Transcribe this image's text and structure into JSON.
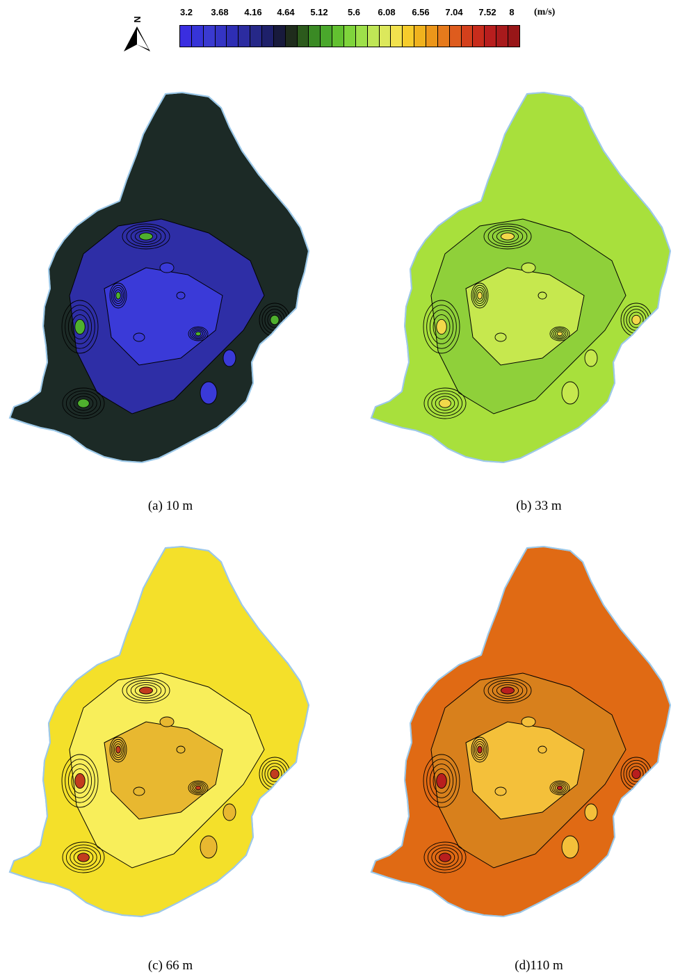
{
  "legend": {
    "ticks": [
      "3.2",
      "3.68",
      "4.16",
      "4.64",
      "5.12",
      "5.6",
      "6.08",
      "6.56",
      "7.04",
      "7.52",
      "8"
    ],
    "unit": "(m/s)",
    "north_label": "N",
    "colors": [
      "#3a2ee0",
      "#3634d8",
      "#3a3ad0",
      "#3434c4",
      "#2e2eb4",
      "#2c2ca0",
      "#262888",
      "#1e206a",
      "#181a3c",
      "#1f2c1c",
      "#2c5a1c",
      "#3a8a24",
      "#4aa82c",
      "#62c030",
      "#7fd43c",
      "#9ee04a",
      "#bfe656",
      "#dce85c",
      "#f2e24e",
      "#f6cc2c",
      "#f0b21e",
      "#ec961a",
      "#e67a1c",
      "#de5c1e",
      "#d4401c",
      "#c82c1c",
      "#b81e1e",
      "#a81a1c",
      "#981618"
    ]
  },
  "panels": [
    {
      "caption": "(a) 10 m",
      "base_color": "#1c2a26",
      "region_color": "#2e2ea6",
      "light_color": "#3a3ad8",
      "accent_color": "#4fb02e"
    },
    {
      "caption": "(b) 33 m",
      "base_color": "#a8e03c",
      "region_color": "#8fd03a",
      "light_color": "#c6e84e",
      "accent_color": "#f2d84a"
    },
    {
      "caption": "(c) 66 m",
      "base_color": "#f4e02a",
      "region_color": "#f8ee5a",
      "light_color": "#e8b830",
      "accent_color": "#c23c1e"
    },
    {
      "caption": "(d)110 m",
      "base_color": "#e06a14",
      "region_color": "#d8801c",
      "light_color": "#f4c03a",
      "accent_color": "#b81e1e"
    }
  ]
}
